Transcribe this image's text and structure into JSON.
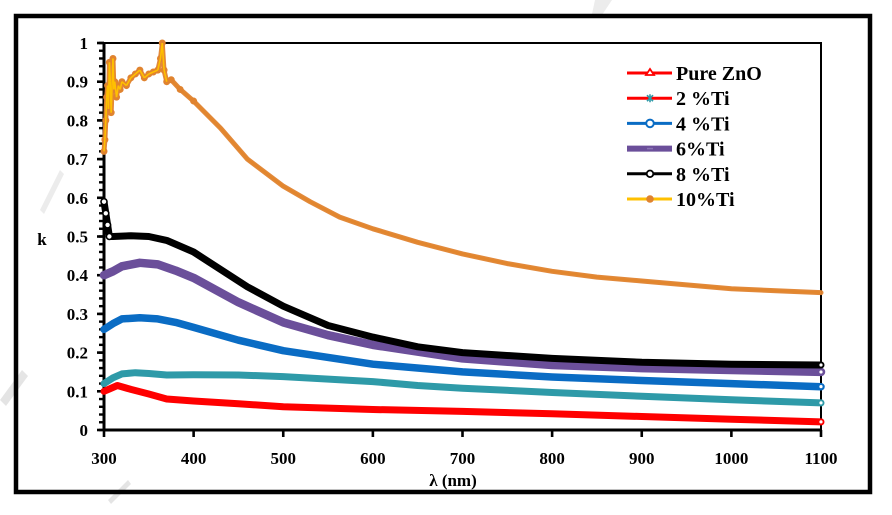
{
  "chart_data": {
    "type": "line",
    "title": "",
    "xlabel": "λ (nm)",
    "ylabel": "k",
    "xlim": [
      300,
      1100
    ],
    "ylim": [
      0,
      1
    ],
    "xticks": [
      "300",
      "400",
      "500",
      "600",
      "700",
      "800",
      "900",
      "1000",
      "1100"
    ],
    "xtick_values": [
      300,
      400,
      500,
      600,
      700,
      800,
      900,
      1000,
      1100
    ],
    "yticks": [
      "0",
      "0.1",
      "0.2",
      "0.3",
      "0.4",
      "0.5",
      "0.6",
      "0.7",
      "0.8",
      "0.9",
      "1"
    ],
    "ytick_values": [
      0,
      0.1,
      0.2,
      0.3,
      0.4,
      0.5,
      0.6,
      0.7,
      0.8,
      0.9,
      1.0
    ],
    "grid": false,
    "legend_position": "top-right",
    "series": [
      {
        "name": "Pure ZnO",
        "line_color": "#ff0000",
        "marker_color": "#ff0000",
        "marker": "triangle",
        "x": [
          300,
          305,
          315,
          330,
          350,
          370,
          400,
          450,
          500,
          600,
          700,
          800,
          900,
          1000,
          1100
        ],
        "y": [
          0.1,
          0.105,
          0.115,
          0.105,
          0.093,
          0.08,
          0.075,
          0.068,
          0.06,
          0.053,
          0.048,
          0.042,
          0.035,
          0.028,
          0.021
        ]
      },
      {
        "name": "2 %Ti",
        "line_color": "#2e9aa8",
        "legend_line_color": "#ff0000",
        "marker_color": "#2e9aa8",
        "marker": "star",
        "x": [
          300,
          310,
          320,
          335,
          350,
          370,
          400,
          450,
          500,
          600,
          650,
          700,
          800,
          900,
          1000,
          1100
        ],
        "y": [
          0.12,
          0.135,
          0.145,
          0.148,
          0.146,
          0.142,
          0.143,
          0.142,
          0.138,
          0.125,
          0.115,
          0.108,
          0.097,
          0.087,
          0.078,
          0.07
        ]
      },
      {
        "name": "4 %Ti",
        "line_color": "#0a6cc4",
        "marker_color": "#0a6cc4",
        "marker": "circle",
        "x": [
          300,
          310,
          320,
          340,
          360,
          380,
          400,
          450,
          500,
          600,
          700,
          800,
          900,
          1000,
          1100
        ],
        "y": [
          0.26,
          0.275,
          0.287,
          0.29,
          0.287,
          0.278,
          0.265,
          0.232,
          0.205,
          0.17,
          0.15,
          0.137,
          0.128,
          0.12,
          0.112
        ]
      },
      {
        "name": "6%Ti",
        "line_color": "#6b4f9a",
        "marker_color": "#6b4f9a",
        "marker": "dash",
        "x": [
          300,
          310,
          320,
          340,
          360,
          380,
          400,
          450,
          500,
          550,
          600,
          700,
          800,
          900,
          1000,
          1100
        ],
        "y": [
          0.4,
          0.41,
          0.423,
          0.432,
          0.428,
          0.412,
          0.393,
          0.33,
          0.278,
          0.245,
          0.22,
          0.185,
          0.168,
          0.16,
          0.155,
          0.15
        ]
      },
      {
        "name": "8 %Ti",
        "line_color": "#000000",
        "marker_color": "#000000",
        "marker": "diamond",
        "x": [
          300,
          302,
          304,
          306,
          310,
          330,
          350,
          370,
          400,
          460,
          500,
          550,
          600,
          650,
          700,
          800,
          900,
          1000,
          1100
        ],
        "y": [
          0.59,
          0.56,
          0.53,
          0.5,
          0.5,
          0.502,
          0.5,
          0.49,
          0.46,
          0.37,
          0.32,
          0.27,
          0.24,
          0.215,
          0.2,
          0.185,
          0.175,
          0.17,
          0.168
        ]
      },
      {
        "name": "10%Ti",
        "line_color": "#ffc000",
        "marker_color": "#e0832f",
        "marker": "circle-filled",
        "x": [
          300,
          301,
          302,
          303,
          304,
          305,
          306,
          307,
          308,
          309,
          310,
          311,
          312,
          314,
          316,
          318,
          320,
          325,
          330,
          335,
          340,
          345,
          350,
          355,
          360,
          363,
          365,
          367,
          370,
          375,
          385,
          400,
          430,
          460,
          500,
          530,
          563,
          600,
          650,
          700,
          750,
          800,
          850,
          900,
          950,
          1000,
          1050,
          1100
        ],
        "y": [
          0.72,
          0.75,
          0.8,
          0.86,
          0.89,
          0.83,
          0.95,
          0.9,
          0.82,
          0.89,
          0.96,
          0.88,
          0.9,
          0.86,
          0.89,
          0.88,
          0.9,
          0.89,
          0.91,
          0.92,
          0.93,
          0.91,
          0.92,
          0.925,
          0.93,
          0.96,
          1.0,
          0.93,
          0.9,
          0.905,
          0.88,
          0.85,
          0.78,
          0.7,
          0.63,
          0.59,
          0.55,
          0.52,
          0.485,
          0.455,
          0.43,
          0.41,
          0.395,
          0.385,
          0.375,
          0.365,
          0.36,
          0.355
        ]
      }
    ]
  }
}
